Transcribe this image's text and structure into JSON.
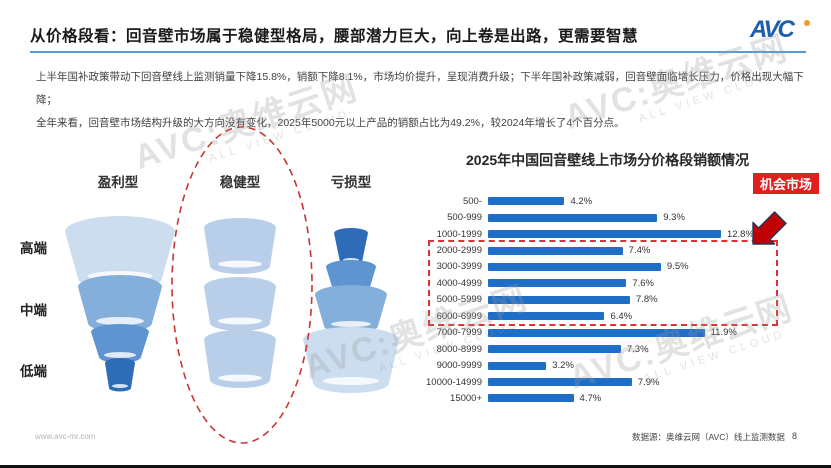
{
  "header": {
    "title": "从价格段看：回音壁市场属于稳健型格局，腰部潜力巨大，向上卷是出路，更需要智慧",
    "logo_text": "AVC",
    "accent_color": "#1c5fae"
  },
  "summary": {
    "line1": "上半年国补政策带动下回音壁线上监测销量下降15.8%，销额下降8.1%，市场均价提升，呈现消费升级；下半年国补政策减弱，回音壁面临增长压力，价格出现大幅下降；",
    "line2": "全年来看，回音壁市场结构升级的大方向没有变化，2025年5000元以上产品的销额占比为49.2%，较2024年增长了4个百分点。"
  },
  "funnel_diagram": {
    "column_labels": [
      "盈利型",
      "稳健型",
      "亏损型"
    ],
    "row_labels": [
      "高端",
      "中端",
      "低端"
    ],
    "colors": {
      "tier1": "#ccddf0",
      "tier2": "#85afdb",
      "tier3": "#5e94cf",
      "tier4": "#2e6cb8",
      "steady": "#b9cfe9",
      "highlight": "#cc3333"
    }
  },
  "chart_data": {
    "type": "bar",
    "orientation": "horizontal",
    "title": "2025年中国回音壁线上市场分价格段销额情况",
    "categories": [
      "500-",
      "500-999",
      "1000-1999",
      "2000-2999",
      "3000-3999",
      "4000-4999",
      "5000-5999",
      "6000-6999",
      "7000-7999",
      "8000-8999",
      "9000-9999",
      "10000-14999",
      "15000+"
    ],
    "values": [
      4.2,
      9.3,
      12.8,
      7.4,
      9.5,
      7.6,
      7.8,
      6.4,
      11.9,
      7.3,
      3.2,
      7.9,
      4.7
    ],
    "unit": "%",
    "xlim": [
      0,
      14
    ],
    "bar_color": "#1e6ec8",
    "badge": "机会市场",
    "badge_color": "#e21e1e",
    "highlight_range": {
      "from": "2000-2999",
      "to": "6000-6999"
    }
  },
  "footer": {
    "website": "www.avc-mr.com",
    "source": "数据源：奥维云网（AVC）线上监测数据",
    "page": "8"
  },
  "watermark": {
    "line1": "AVC:奥维云网",
    "line2": "ALL VIEW CLOUD"
  }
}
